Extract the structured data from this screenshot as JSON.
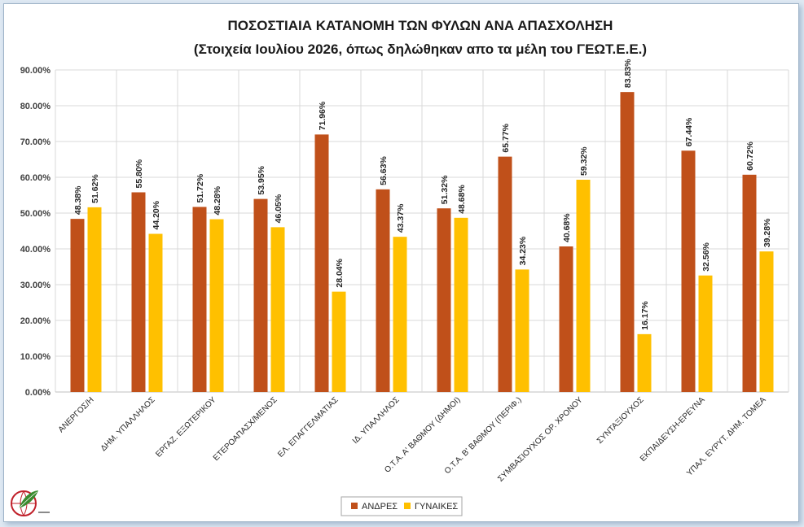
{
  "chart_data": {
    "type": "bar",
    "title": "ΠΟΣΟΣΤΙΑΙΑ ΚΑΤΑΝΟΜΗ ΤΩΝ ΦΥΛΩΝ ΑΝΑ ΑΠΑΣΧΟΛΗΣΗ",
    "subtitle": "(Στοιχεία Ιουλίου 2026, όπως δηλώθηκαν απο τα μέλη του ΓΕΩΤ.Ε.Ε.)",
    "xlabel": "",
    "ylabel": "",
    "ylim": [
      0,
      90
    ],
    "yticks": [
      "0.00%",
      "10.00%",
      "20.00%",
      "30.00%",
      "40.00%",
      "50.00%",
      "60.00%",
      "70.00%",
      "80.00%",
      "90.00%"
    ],
    "grid": true,
    "legend_position": "bottom",
    "categories": [
      "ΑΝΕΡΓΟΣ/Η",
      "ΔΗΜ. ΥΠΑΛΛΗΛΟΣ",
      "ΕΡΓΑΖ. ΕΞΩΤΕΡΙΚΟΥ",
      "ΕΤΕΡΟΑΠΑΣΧ/ΜΕΝΟΣ",
      "ΕΛ. ΕΠΑΓΓΕΛΜΑΤΙΑΣ",
      "ΙΔ. ΥΠΑΛΛΗΛΟΣ",
      "Ο.Τ.Α. Α' ΒΑΘΜΟΥ (ΔΗΜΟΙ)",
      "Ο.Τ.Α. Β' ΒΑΘΜΟΥ (ΠΕΡΙΦ.)",
      "ΣΥΜΒΑΣΙΟΥΧΟΣ ΟΡ. ΧΡΟΝΟΥ",
      "ΣΥΝΤΑΞΙΟΥΧΟΣ",
      "ΕΚΠΑΙΔΕΥΣΗ-ΕΡΕΥΝΑ",
      "ΥΠΑΛ. ΕΥΡΥΤ. ΔΗΜ. ΤΟΜΕΑ"
    ],
    "series": [
      {
        "name": "ΑΝΔΡΕΣ",
        "color": "#c0501a",
        "values": [
          48.38,
          55.8,
          51.72,
          53.95,
          71.96,
          56.63,
          51.32,
          65.77,
          40.68,
          83.83,
          67.44,
          60.72
        ],
        "labels": [
          "48.38%",
          "55.80%",
          "51.72%",
          "53.95%",
          "71.96%",
          "56.63%",
          "51.32%",
          "65.77%",
          "40.68%",
          "83.83%",
          "67.44%",
          "60.72%"
        ]
      },
      {
        "name": "ΓΥΝΑΙΚΕΣ",
        "color": "#ffc000",
        "values": [
          51.62,
          44.2,
          48.28,
          46.05,
          28.04,
          43.37,
          48.68,
          34.23,
          59.32,
          16.17,
          32.56,
          39.28
        ],
        "labels": [
          "51.62%",
          "44.20%",
          "48.28%",
          "46.05%",
          "28.04%",
          "43.37%",
          "48.68%",
          "34.23%",
          "59.32%",
          "16.17%",
          "32.56%",
          "39.28%"
        ]
      }
    ]
  },
  "logo": {
    "name": "geotee-logo",
    "colors": {
      "green": "#3a8a2e",
      "red": "#c0202a"
    },
    "text": "ΓΕΩΤΕΧΝΙΚΟ ΕΠΙΜΕΛΗΤΗΡΙΟ ΕΛΛΑΔΑΣ"
  }
}
